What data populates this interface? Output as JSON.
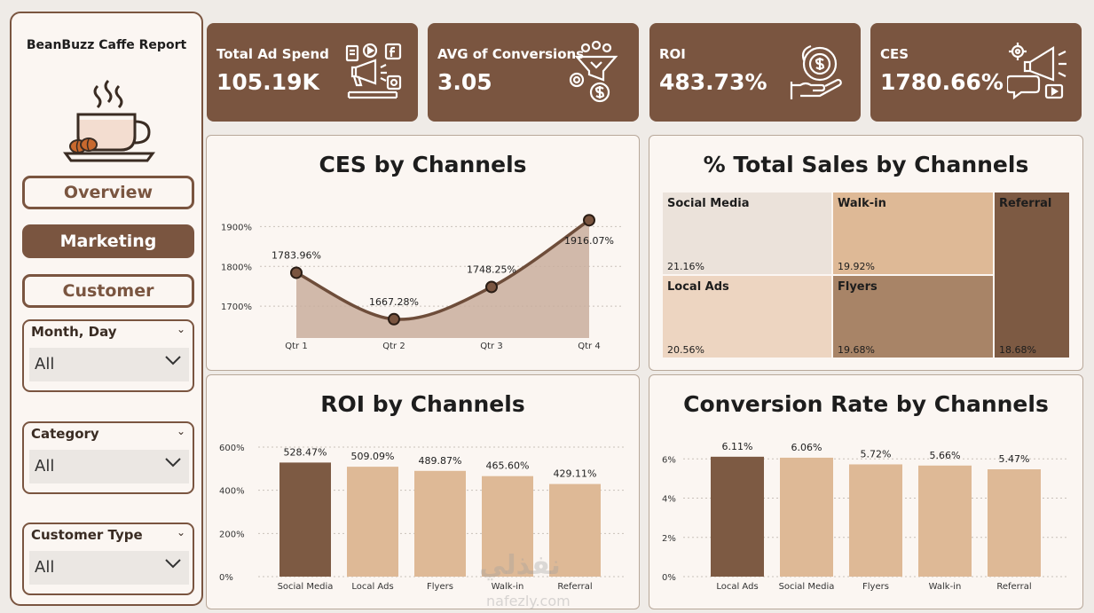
{
  "sidebar": {
    "report_title": "BeanBuzz Caffe Report",
    "nav": {
      "overview": "Overview",
      "marketing": "Marketing",
      "customer": "Customer"
    },
    "slicers": [
      {
        "title": "Month, Day",
        "value": "All"
      },
      {
        "title": "Category",
        "value": "All"
      },
      {
        "title": "Customer Type",
        "value": "All"
      }
    ]
  },
  "kpis": [
    {
      "label": "Total Ad Spend",
      "value": "105.19K",
      "icon": "advertising-icon"
    },
    {
      "label": "AVG of Conversions",
      "value": "3.05",
      "icon": "funnel-conversion-icon"
    },
    {
      "label": "ROI",
      "value": "483.73%",
      "icon": "money-hand-icon"
    },
    {
      "label": "CES",
      "value": "1780.66%",
      "icon": "megaphone-icon"
    }
  ],
  "colors": {
    "brown": "#7a5540",
    "dark_bar": "#7d5a43",
    "light_bar": "#deb996",
    "area": "#c9ae9e"
  },
  "chart_data": [
    {
      "type": "area",
      "title": "CES by Channels",
      "categories": [
        "Qtr 1",
        "Qtr 2",
        "Qtr 3",
        "Qtr 4"
      ],
      "values": [
        1783.96,
        1667.28,
        1748.25,
        1916.07
      ],
      "labels": [
        "1783.96%",
        "1667.28%",
        "1748.25%",
        "1916.07%"
      ],
      "yticks": [
        "1700%",
        "1800%",
        "1900%"
      ],
      "ytick_values": [
        1700,
        1800,
        1900
      ],
      "ylim": [
        1620,
        1950
      ],
      "grid": true
    },
    {
      "type": "treemap",
      "title": "% Total Sales by Channels",
      "items": [
        {
          "name": "Social Media",
          "value": 21.16,
          "label": "21.16%",
          "color": "#ebe2da"
        },
        {
          "name": "Walk-in",
          "value": 19.92,
          "label": "19.92%",
          "color": "#deb996"
        },
        {
          "name": "Referral",
          "value": 18.68,
          "label": "18.68%",
          "color": "#7d5a43"
        },
        {
          "name": "Local Ads",
          "value": 20.56,
          "label": "20.56%",
          "color": "#edd5c1"
        },
        {
          "name": "Flyers",
          "value": 19.68,
          "label": "19.68%",
          "color": "#a88467"
        }
      ]
    },
    {
      "type": "bar",
      "title": "ROI by Channels",
      "categories": [
        "Social Media",
        "Local Ads",
        "Flyers",
        "Walk-in",
        "Referral"
      ],
      "values": [
        528.47,
        509.09,
        489.87,
        465.6,
        429.11
      ],
      "labels": [
        "528.47%",
        "509.09%",
        "489.87%",
        "465.60%",
        "429.11%"
      ],
      "yticks": [
        "0%",
        "200%",
        "400%",
        "600%"
      ],
      "ytick_values": [
        0,
        200,
        400,
        600
      ],
      "ylim": [
        0,
        600
      ],
      "highlight_index": 0,
      "grid": true
    },
    {
      "type": "bar",
      "title": "Conversion Rate by Channels",
      "categories": [
        "Local Ads",
        "Social Media",
        "Flyers",
        "Walk-in",
        "Referral"
      ],
      "values": [
        6.11,
        6.06,
        5.72,
        5.66,
        5.47
      ],
      "labels": [
        "6.11%",
        "6.06%",
        "5.72%",
        "5.66%",
        "5.47%"
      ],
      "yticks": [
        "0%",
        "2%",
        "4%",
        "6%"
      ],
      "ytick_values": [
        0,
        2,
        4,
        6
      ],
      "ylim": [
        0,
        6.6
      ],
      "highlight_index": 0,
      "grid": true
    }
  ],
  "watermark": {
    "arabic": "نفذلي",
    "latin": "nafezly.com"
  }
}
